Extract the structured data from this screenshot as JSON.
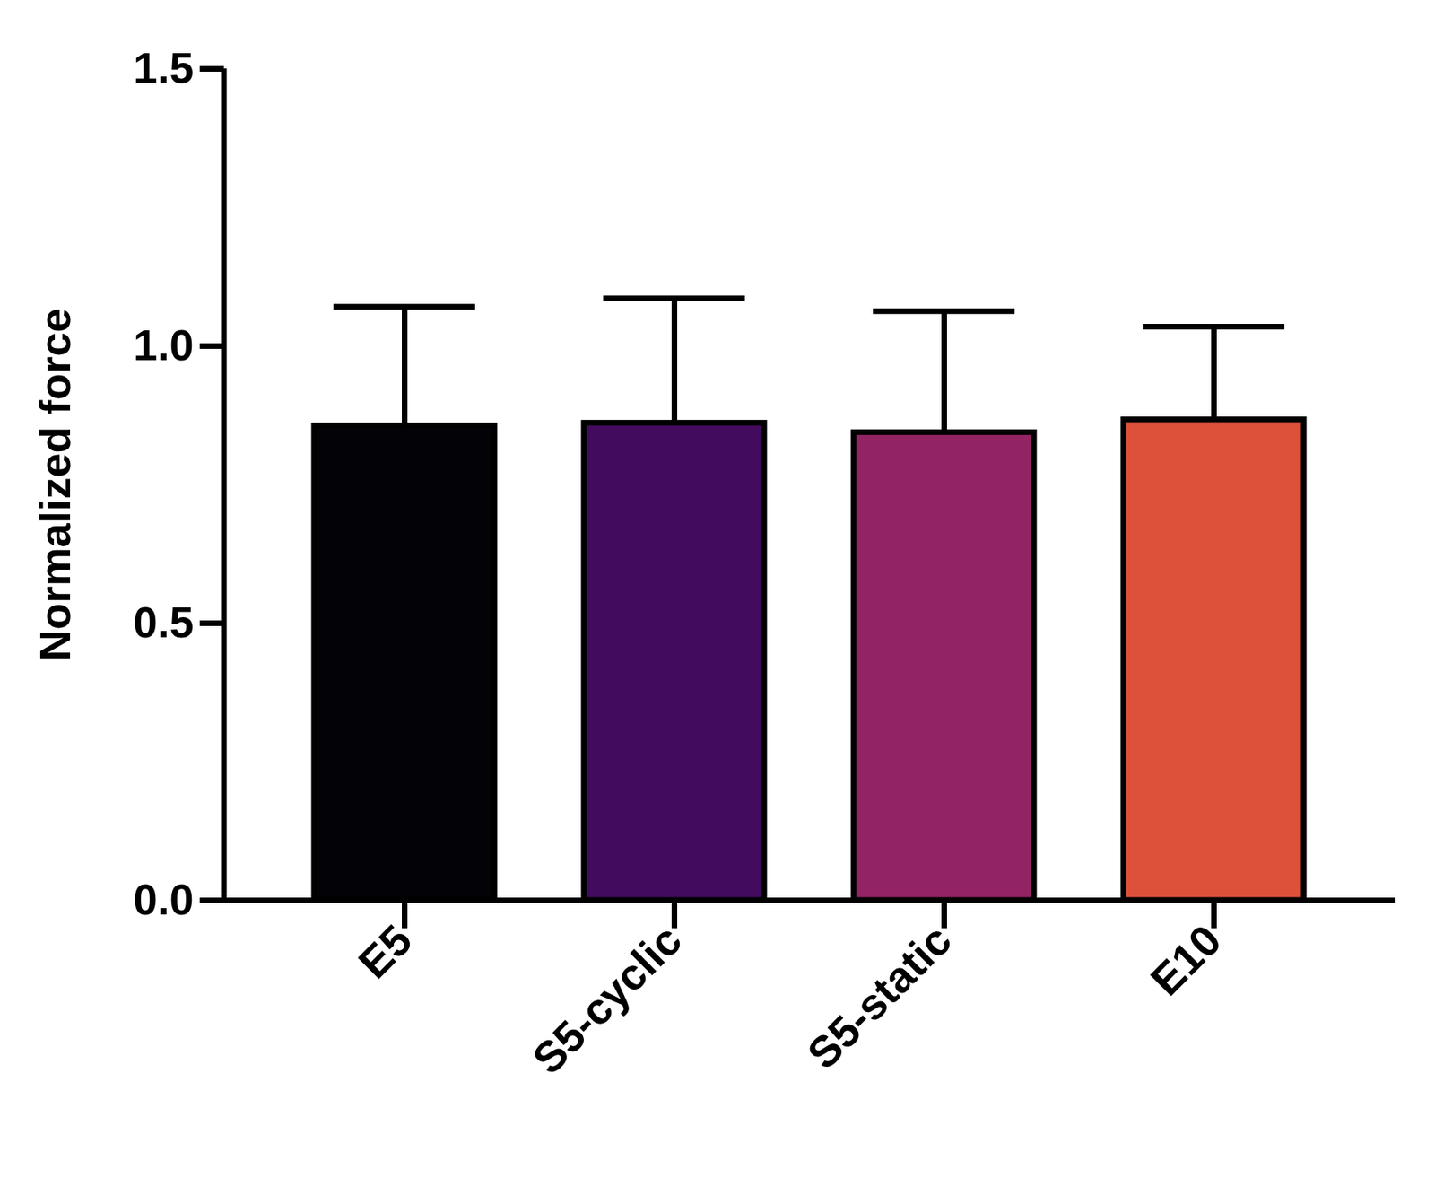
{
  "chart_data": {
    "type": "bar",
    "categories": [
      "E5",
      "S5-cyclic",
      "S5-static",
      "E10"
    ],
    "values": [
      0.856,
      0.861,
      0.844,
      0.867
    ],
    "errors": [
      0.215,
      0.225,
      0.219,
      0.168
    ],
    "colors": [
      "#030307",
      "#420b5e",
      "#922463",
      "#dd513b"
    ],
    "ylabel": "Normalized force",
    "ylim": [
      0,
      1.5
    ],
    "yticks": [
      {
        "value": 0,
        "label": "0.0"
      },
      0.5,
      {
        "value": 1,
        "label": "1.0"
      },
      1.5
    ],
    "grid": false
  }
}
